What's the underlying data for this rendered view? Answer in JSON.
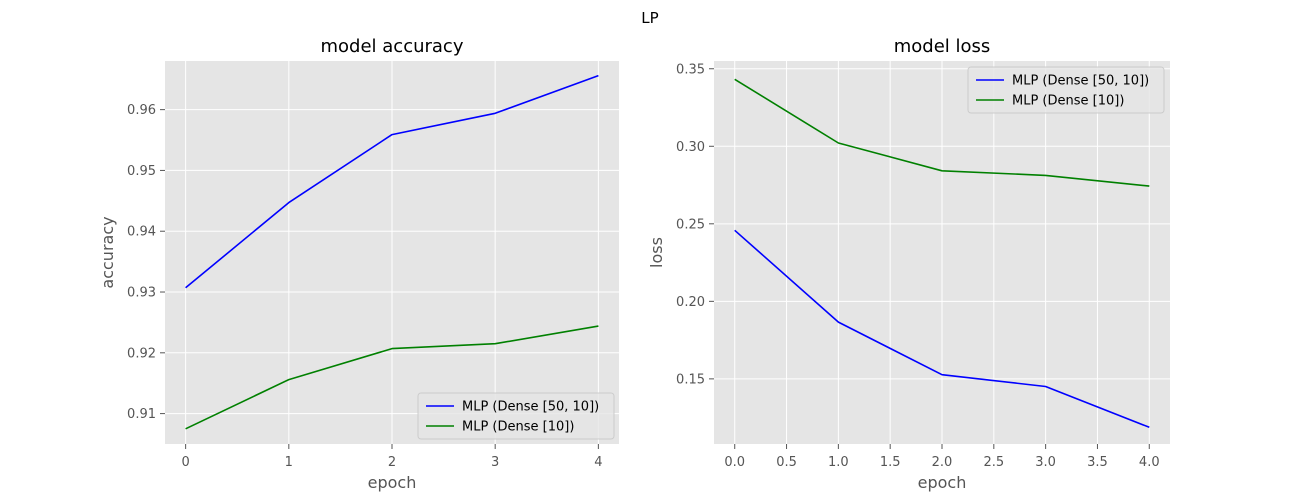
{
  "figure": {
    "suptitle": "LP"
  },
  "colors": {
    "series1": "#0000ff",
    "series2": "#008000",
    "plot_bg": "#e5e5e5",
    "grid": "#ffffff"
  },
  "chart_data": [
    {
      "type": "line",
      "title": "model accuracy",
      "xlabel": "epoch",
      "ylabel": "accuracy",
      "x": [
        0,
        1,
        2,
        3,
        4
      ],
      "xlim": [
        -0.2,
        4.2
      ],
      "ylim": [
        0.905,
        0.968
      ],
      "xticks": [
        0,
        1,
        2,
        3,
        4
      ],
      "xtick_labels": [
        "0",
        "1",
        "2",
        "3",
        "4"
      ],
      "yticks": [
        0.91,
        0.92,
        0.93,
        0.94,
        0.95,
        0.96
      ],
      "ytick_labels": [
        "0.91",
        "0.92",
        "0.93",
        "0.94",
        "0.95",
        "0.96"
      ],
      "grid": true,
      "legend_position": "lower-right",
      "series": [
        {
          "name": "MLP (Dense [50, 10])",
          "color": "#0000ff",
          "values": [
            0.9307,
            0.9447,
            0.9559,
            0.9594,
            0.9656
          ]
        },
        {
          "name": "MLP (Dense [10])",
          "color": "#008000",
          "values": [
            0.9075,
            0.9156,
            0.9207,
            0.9215,
            0.9244
          ]
        }
      ]
    },
    {
      "type": "line",
      "title": "model loss",
      "xlabel": "epoch",
      "ylabel": "loss",
      "x": [
        0,
        1,
        2,
        3,
        4
      ],
      "xlim": [
        -0.2,
        4.2
      ],
      "ylim": [
        0.108,
        0.355
      ],
      "xticks": [
        0,
        0.5,
        1,
        1.5,
        2,
        2.5,
        3,
        3.5,
        4
      ],
      "xtick_labels": [
        "0.0",
        "0.5",
        "1.0",
        "1.5",
        "2.0",
        "2.5",
        "3.0",
        "3.5",
        "4.0"
      ],
      "yticks": [
        0.15,
        0.2,
        0.25,
        0.3,
        0.35
      ],
      "ytick_labels": [
        "0.15",
        "0.20",
        "0.25",
        "0.30",
        "0.35"
      ],
      "grid": true,
      "legend_position": "top-right",
      "series": [
        {
          "name": "MLP (Dense [50, 10])",
          "color": "#0000ff",
          "values": [
            0.2458,
            0.1866,
            0.1527,
            0.1451,
            0.1188
          ]
        },
        {
          "name": "MLP (Dense [10])",
          "color": "#008000",
          "values": [
            0.3432,
            0.3021,
            0.2842,
            0.2812,
            0.2743
          ]
        }
      ]
    }
  ]
}
